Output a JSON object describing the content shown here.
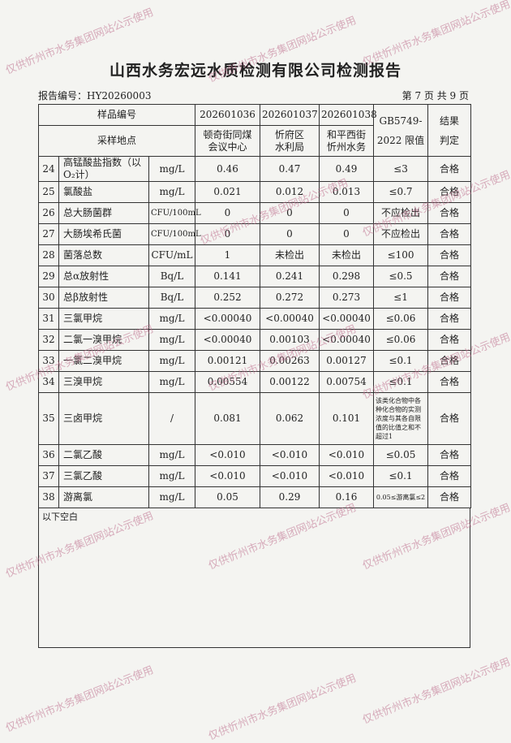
{
  "header": {
    "title": "山西水务宏远水质检测有限公司检测报告",
    "report_no": "报告编号：HY20260003",
    "page": "第 7 页 共 9 页"
  },
  "table": {
    "header": [
      [
        "样品编号",
        "202601036",
        "202601037",
        "202601038",
        "GB5749-2022 限值",
        "结果判定"
      ],
      [
        "采样地点",
        "顿奇街同煤会议中心",
        "忻府区水利局",
        "和平西街忻州水务"
      ]
    ],
    "rows": [
      [
        "24",
        "高锰酸盐指数（以O₂计）",
        "mg/L",
        "0.46",
        "0.47",
        "0.49",
        "≤3",
        "合格"
      ],
      [
        "25",
        "氯酸盐",
        "mg/L",
        "0.021",
        "0.012",
        "0.013",
        "≤0.7",
        "合格"
      ],
      [
        "26",
        "总大肠菌群",
        "CFU/100mL",
        "0",
        "0",
        "0",
        "不应检出",
        "合格"
      ],
      [
        "27",
        "大肠埃希氏菌",
        "CFU/100mL",
        "0",
        "0",
        "0",
        "不应检出",
        "合格"
      ],
      [
        "28",
        "菌落总数",
        "CFU/mL",
        "1",
        "未检出",
        "未检出",
        "≤100",
        "合格"
      ],
      [
        "29",
        "总α放射性",
        "Bq/L",
        "0.141",
        "0.241",
        "0.298",
        "≤0.5",
        "合格"
      ],
      [
        "30",
        "总β放射性",
        "Bq/L",
        "0.252",
        "0.272",
        "0.273",
        "≤1",
        "合格"
      ],
      [
        "31",
        "三氯甲烷",
        "mg/L",
        "<0.00040",
        "<0.00040",
        "<0.00040",
        "≤0.06",
        "合格"
      ],
      [
        "32",
        "二氯一溴甲烷",
        "mg/L",
        "<0.00040",
        "0.00103",
        "<0.00040",
        "≤0.06",
        "合格"
      ],
      [
        "33",
        "一氯二溴甲烷",
        "mg/L",
        "0.00121",
        "0.00263",
        "0.00127",
        "≤0.1",
        "合格"
      ],
      [
        "34",
        "三溴甲烷",
        "mg/L",
        "0.00554",
        "0.00122",
        "0.00754",
        "≤0.1",
        "合格"
      ],
      [
        "35",
        "三卤甲烷",
        "/",
        "0.081",
        "0.062",
        "0.101",
        "该类化合物中各种化合物的实测浓度与其各自限值的比值之和不超过1",
        "合格"
      ],
      [
        "36",
        "二氯乙酸",
        "mg/L",
        "<0.010",
        "<0.010",
        "<0.010",
        "≤0.05",
        "合格"
      ],
      [
        "37",
        "三氯乙酸",
        "mg/L",
        "<0.010",
        "<0.010",
        "<0.010",
        "≤0.1",
        "合格"
      ],
      [
        "38",
        "游离氯",
        "mg/L",
        "0.05",
        "0.29",
        "0.16",
        "0.05≤游离氯≤2",
        "合格"
      ]
    ]
  },
  "footer": "以下空白",
  "watermark": "仅供忻州市水务集团网站公示使用"
}
